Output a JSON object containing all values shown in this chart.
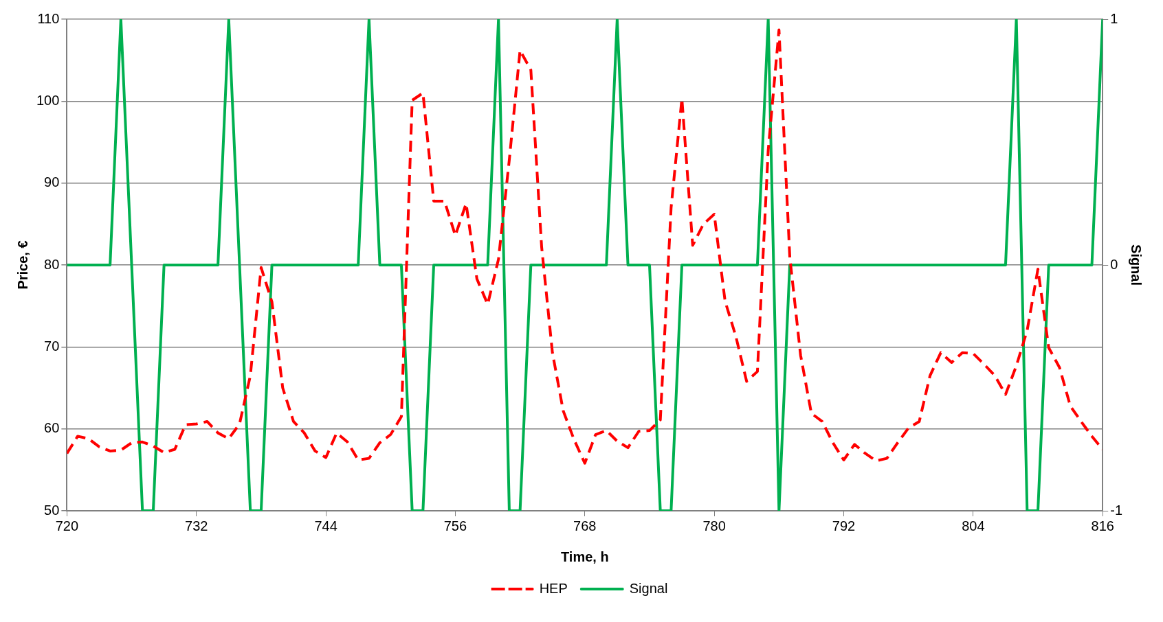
{
  "chart_data": {
    "type": "line",
    "xlabel": "Time, h",
    "ylabel": "Price, €",
    "y2label": "Signal",
    "x": [
      720,
      721,
      722,
      723,
      724,
      725,
      726,
      727,
      728,
      729,
      730,
      731,
      732,
      733,
      734,
      735,
      736,
      737,
      738,
      739,
      740,
      741,
      742,
      743,
      744,
      745,
      746,
      747,
      748,
      749,
      750,
      751,
      752,
      753,
      754,
      755,
      756,
      757,
      758,
      759,
      760,
      761,
      762,
      763,
      764,
      765,
      766,
      767,
      768,
      769,
      770,
      771,
      772,
      773,
      774,
      775,
      776,
      777,
      778,
      779,
      780,
      781,
      782,
      783,
      784,
      785,
      786,
      787,
      788,
      789,
      790,
      791,
      792,
      793,
      794,
      795,
      796,
      797,
      798,
      799,
      800,
      801,
      802,
      803,
      804,
      805,
      806,
      807,
      808,
      809,
      810,
      811,
      812,
      813,
      814,
      815,
      816
    ],
    "series": [
      {
        "name": "HEP",
        "color": "#ff0000",
        "line_style": "dashed",
        "values": [
          57,
          59.1,
          58.8,
          57.8,
          57.3,
          57.4,
          58.3,
          58.4,
          57.9,
          57.1,
          57.5,
          60.5,
          60.6,
          60.9,
          59.5,
          58.8,
          60.6,
          66.5,
          79.7,
          75.5,
          65,
          60.9,
          59.5,
          57.3,
          56.5,
          59.5,
          58.4,
          56.2,
          56.4,
          58.3,
          59.3,
          61.5,
          100.1,
          101,
          87.8,
          87.8,
          83.6,
          87.5,
          78.3,
          75.2,
          80.7,
          92.8,
          106.2,
          103.8,
          82.2,
          69.3,
          62.2,
          58.7,
          55.8,
          59.3,
          59.8,
          58.5,
          57.7,
          59.7,
          59.8,
          61.1,
          87,
          100.3,
          82.4,
          85,
          86.2,
          75.6,
          71.3,
          65.8,
          67,
          94,
          108.7,
          81,
          69,
          61.9,
          60.9,
          58.3,
          56.2,
          58.1,
          57,
          56.1,
          56.4,
          58.3,
          60.1,
          60.9,
          66.5,
          69.3,
          68.1,
          69.3,
          69.2,
          67.9,
          66.5,
          64.2,
          67.7,
          72,
          79.5,
          69.9,
          67.5,
          62.8,
          60.9,
          59.1,
          57.5
        ]
      },
      {
        "name": "Signal",
        "color": "#00b050",
        "line_style": "solid",
        "axis": "y2",
        "values": [
          0,
          0,
          0,
          0,
          0,
          1,
          0,
          -1,
          -1,
          0,
          0,
          0,
          0,
          0,
          0,
          1,
          0,
          -1,
          -1,
          0,
          0,
          0,
          0,
          0,
          0,
          0,
          0,
          0,
          1,
          0,
          0,
          0,
          -1,
          -1,
          0,
          0,
          0,
          0,
          0,
          0,
          1,
          -1,
          -1,
          0,
          0,
          0,
          0,
          0,
          0,
          0,
          0,
          1,
          0,
          0,
          0,
          -1,
          -1,
          0,
          0,
          0,
          0,
          0,
          0,
          0,
          0,
          1,
          -1,
          0,
          0,
          0,
          0,
          0,
          0,
          0,
          0,
          0,
          0,
          0,
          0,
          0,
          0,
          0,
          0,
          0,
          0,
          0,
          0,
          0,
          1,
          -1,
          -1,
          0,
          0,
          0,
          0,
          0,
          1
        ]
      }
    ],
    "xlim": [
      720,
      816
    ],
    "xticks": [
      720,
      732,
      744,
      756,
      768,
      780,
      792,
      804,
      816
    ],
    "ylim": [
      50,
      110
    ],
    "yticks": [
      50,
      60,
      70,
      80,
      90,
      100,
      110
    ],
    "y2lim": [
      -1,
      1
    ],
    "y2ticks": [
      -1,
      0,
      1
    ],
    "grid": "y",
    "legend": "bottom",
    "marker": "none"
  }
}
